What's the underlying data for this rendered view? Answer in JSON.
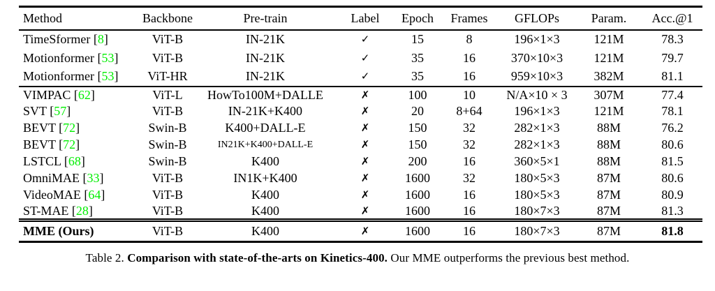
{
  "colors": {
    "citation_green": "#00ee00",
    "text": "#000000",
    "background": "#ffffff"
  },
  "table": {
    "columns": [
      {
        "key": "method",
        "label": "Method"
      },
      {
        "key": "backbone",
        "label": "Backbone"
      },
      {
        "key": "pretrain",
        "label": "Pre-train"
      },
      {
        "key": "label",
        "label": "Label"
      },
      {
        "key": "epoch",
        "label": "Epoch"
      },
      {
        "key": "frames",
        "label": "Frames"
      },
      {
        "key": "gflops",
        "label": "GFLOPs"
      },
      {
        "key": "param",
        "label": "Param."
      },
      {
        "key": "acc",
        "label": "Acc.@1"
      }
    ],
    "check_glyph": "✓",
    "cross_glyph": "✗",
    "groups": [
      {
        "rows": [
          {
            "method": "TimeSformer",
            "cite": "8",
            "backbone": "ViT-B",
            "pretrain": "IN-21K",
            "label": "✓",
            "epoch": "15",
            "frames": "8",
            "gflops": "196×1×3",
            "param": "121M",
            "acc": "78.3"
          },
          {
            "method": "Motionformer",
            "cite": "53",
            "backbone": "ViT-B",
            "pretrain": "IN-21K",
            "label": "✓",
            "epoch": "35",
            "frames": "16",
            "gflops": "370×10×3",
            "param": "121M",
            "acc": "79.7"
          },
          {
            "method": "Motionformer",
            "cite": "53",
            "backbone": "ViT-HR",
            "pretrain": "IN-21K",
            "label": "✓",
            "epoch": "35",
            "frames": "16",
            "gflops": "959×10×3",
            "param": "382M",
            "acc": "81.1"
          }
        ]
      },
      {
        "rows": [
          {
            "method": "VIMPAC",
            "cite": "62",
            "backbone": "ViT-L",
            "pretrain": "HowTo100M+DALLE",
            "label": "✗",
            "epoch": "100",
            "frames": "10",
            "gflops": "N/A×10 × 3",
            "param": "307M",
            "acc": "77.4"
          },
          {
            "method": "SVT",
            "cite": "57",
            "backbone": "ViT-B",
            "pretrain": "IN-21K+K400",
            "label": "✗",
            "epoch": "20",
            "frames": "8+64",
            "gflops": "196×1×3",
            "param": "121M",
            "acc": "78.1"
          },
          {
            "method": "BEVT",
            "cite": "72",
            "backbone": "Swin-B",
            "pretrain": "K400+DALL-E",
            "label": "✗",
            "epoch": "150",
            "frames": "32",
            "gflops": "282×1×3",
            "param": "88M",
            "acc": "76.2"
          },
          {
            "method": "BEVT",
            "cite": "72",
            "backbone": "Swin-B",
            "pretrain": "IN21K+K400+DALL-E",
            "pretrain_small": true,
            "label": "✗",
            "epoch": "150",
            "frames": "32",
            "gflops": "282×1×3",
            "param": "88M",
            "acc": "80.6"
          },
          {
            "method": "LSTCL",
            "cite": "68",
            "backbone": "Swin-B",
            "pretrain": "K400",
            "label": "✗",
            "epoch": "200",
            "frames": "16",
            "gflops": "360×5×1",
            "param": "88M",
            "acc": "81.5"
          },
          {
            "method": "OmniMAE",
            "cite": "33",
            "backbone": "ViT-B",
            "pretrain": "IN1K+K400",
            "label": "✗",
            "epoch": "1600",
            "frames": "32",
            "gflops": "180×5×3",
            "param": "87M",
            "acc": "80.6"
          },
          {
            "method": "VideoMAE",
            "cite": "64",
            "backbone": "ViT-B",
            "pretrain": "K400",
            "label": "✗",
            "epoch": "1600",
            "frames": "16",
            "gflops": "180×5×3",
            "param": "87M",
            "acc": "80.9"
          },
          {
            "method": "ST-MAE",
            "cite": "28",
            "backbone": "ViT-B",
            "pretrain": "K400",
            "label": "✗",
            "epoch": "1600",
            "frames": "16",
            "gflops": "180×7×3",
            "param": "87M",
            "acc": "81.3"
          }
        ]
      },
      {
        "rows": [
          {
            "method": "MME (Ours)",
            "cite": null,
            "bold": true,
            "backbone": "ViT-B",
            "pretrain": "K400",
            "label": "✗",
            "epoch": "1600",
            "frames": "16",
            "gflops": "180×7×3",
            "param": "87M",
            "acc": "81.8"
          }
        ]
      }
    ]
  },
  "caption": {
    "prefix": "Table 2. ",
    "bold": "Comparison with state-of-the-arts on Kinetics-400.",
    "rest": " Our MME outperforms the previous best method."
  }
}
